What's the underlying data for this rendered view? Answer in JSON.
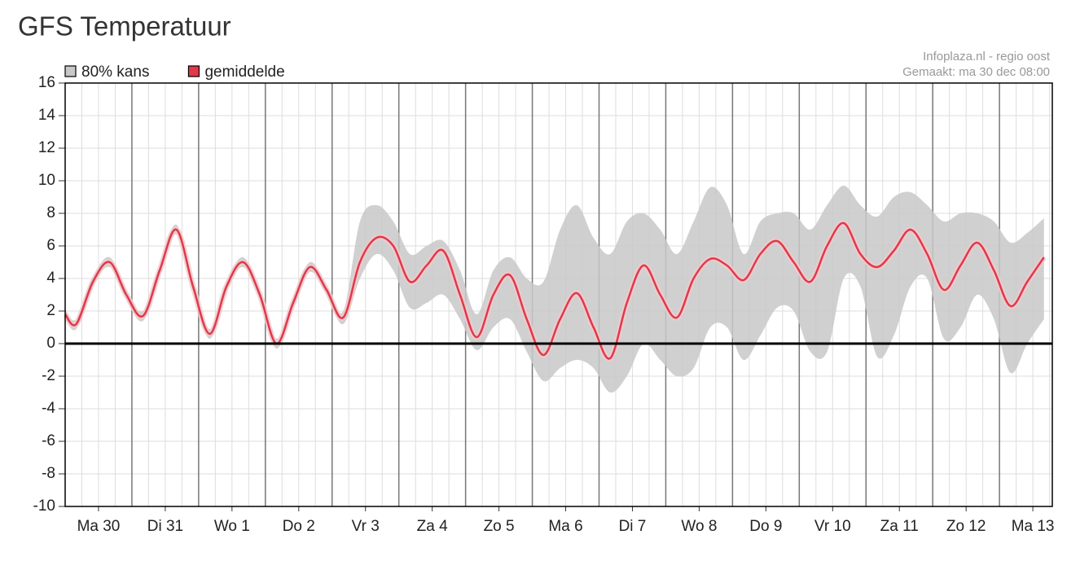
{
  "chart_data": {
    "type": "line",
    "title": "GFS Temperatuur",
    "source": "Infoplaza.nl - regio oost",
    "made": "Gemaakt: ma 30 dec 08:00",
    "legend": "top-left",
    "grid": true,
    "x": [
      0,
      4,
      10,
      16,
      22,
      28,
      34,
      40,
      46,
      52,
      58,
      64,
      70,
      76,
      82,
      88,
      94,
      100,
      106,
      112,
      118,
      124,
      130,
      136,
      142,
      148,
      154,
      160,
      166,
      172,
      178,
      184,
      190,
      196,
      202,
      208,
      214,
      220,
      226,
      232,
      238,
      244,
      250,
      256,
      262,
      268,
      274,
      280,
      286,
      292,
      298,
      304,
      310,
      316,
      322,
      328,
      334,
      340,
      346,
      352
    ],
    "xlim": [
      0,
      355
    ],
    "xticks": [
      {
        "value": 12,
        "label": "Ma 30"
      },
      {
        "value": 36,
        "label": "Di 31"
      },
      {
        "value": 60,
        "label": "Wo 1"
      },
      {
        "value": 84,
        "label": "Do 2"
      },
      {
        "value": 108,
        "label": "Vr 3"
      },
      {
        "value": 132,
        "label": "Za 4"
      },
      {
        "value": 156,
        "label": "Zo 5"
      },
      {
        "value": 180,
        "label": "Ma 6"
      },
      {
        "value": 204,
        "label": "Di 7"
      },
      {
        "value": 228,
        "label": "Wo 8"
      },
      {
        "value": 252,
        "label": "Do 9"
      },
      {
        "value": 276,
        "label": "Vr 10"
      },
      {
        "value": 300,
        "label": "Za 11"
      },
      {
        "value": 324,
        "label": "Zo 12"
      },
      {
        "value": 348,
        "label": "Ma 13"
      }
    ],
    "ylim": [
      -10,
      16
    ],
    "yticks": [
      -10,
      -8,
      -6,
      -4,
      -2,
      0,
      2,
      4,
      6,
      8,
      10,
      12,
      14,
      16
    ],
    "series": [
      {
        "name": "80% kans",
        "color": "#c8c8c8",
        "low": [
          1.5,
          0.9,
          3.5,
          4.7,
          2.7,
          1.4,
          4.2,
          6.7,
          3.2,
          0.3,
          3.2,
          4.7,
          2.7,
          -0.3,
          2.2,
          4.4,
          3.0,
          1.2,
          4.0,
          5.5,
          4.5,
          2.2,
          2.5,
          3.0,
          1.5,
          -0.4,
          1.0,
          1.5,
          -0.5,
          -2.3,
          -1.5,
          -1.0,
          -1.5,
          -3.0,
          -2.0,
          0,
          -1.0,
          -2.0,
          -1.5,
          1.0,
          1.0,
          -1.0,
          0.5,
          2.2,
          2.0,
          -0.5,
          -0.5,
          4.0,
          3.5,
          -0.8,
          0.5,
          3.5,
          4.0,
          0.3,
          1.0,
          3.0,
          1.5,
          -1.8,
          0,
          1.5
        ],
        "high": [
          2.1,
          1.5,
          4.1,
          5.3,
          3.3,
          2.0,
          4.8,
          7.3,
          3.8,
          0.9,
          3.8,
          5.3,
          3.3,
          0.3,
          2.8,
          5.0,
          3.6,
          2.0,
          7.5,
          8.5,
          7.5,
          5.5,
          6.0,
          6.3,
          4.5,
          1.8,
          4.5,
          5.3,
          4.0,
          3.8,
          7.0,
          8.5,
          6.5,
          5.5,
          7.5,
          8.0,
          7.0,
          5.5,
          7.5,
          9.6,
          8.5,
          5.5,
          7.5,
          8.0,
          8.0,
          7.0,
          8.5,
          9.7,
          8.5,
          7.8,
          9.0,
          9.3,
          8.5,
          7.5,
          8.0,
          8.0,
          7.5,
          6.2,
          6.8,
          7.7
        ]
      },
      {
        "name": "gemiddelde",
        "color": "#e0394a",
        "values": [
          1.8,
          1.2,
          3.8,
          5.0,
          3.0,
          1.7,
          4.5,
          7.0,
          3.5,
          0.6,
          3.5,
          5.0,
          3.0,
          0.0,
          2.5,
          4.7,
          3.3,
          1.6,
          5.0,
          6.5,
          6.0,
          3.8,
          4.8,
          5.7,
          3.0,
          0.4,
          3.0,
          4.2,
          1.5,
          -0.7,
          1.5,
          3.1,
          1.0,
          -0.9,
          2.5,
          4.8,
          3.0,
          1.6,
          4.0,
          5.2,
          4.8,
          3.9,
          5.5,
          6.3,
          5.0,
          3.8,
          6.0,
          7.4,
          5.5,
          4.7,
          5.7,
          7.0,
          5.5,
          3.3,
          4.8,
          6.2,
          4.5,
          2.3,
          3.8,
          5.3
        ]
      }
    ]
  }
}
